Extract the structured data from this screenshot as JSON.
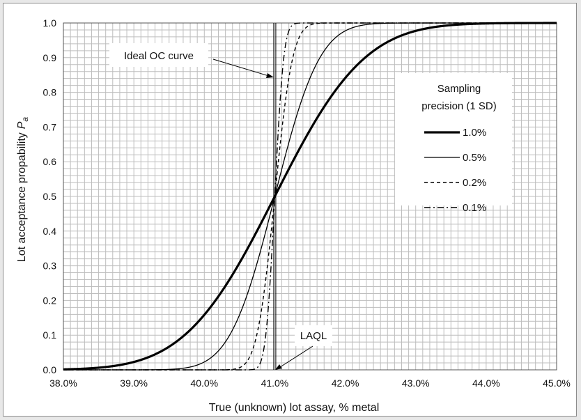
{
  "chart_data": {
    "type": "line",
    "xlabel": "True (unknown) lot assay, % metal",
    "ylabel": "Lot acceptance propability",
    "ylabel_symbol": "P",
    "ylabel_subscript": "a",
    "xlim": [
      38.0,
      45.0
    ],
    "ylim": [
      0.0,
      1.0
    ],
    "x_ticks": [
      38.0,
      39.0,
      40.0,
      41.0,
      42.0,
      43.0,
      44.0,
      45.0
    ],
    "x_tick_labels": [
      "38.0%",
      "39.0%",
      "40.0%",
      "41.0%",
      "42.0%",
      "43.0%",
      "44.0%",
      "45.0%"
    ],
    "y_ticks": [
      0.0,
      0.1,
      0.2,
      0.3,
      0.4,
      0.5,
      0.6,
      0.7,
      0.8,
      0.9,
      1.0
    ],
    "y_tick_labels": [
      "0.0",
      "0.1",
      "0.2",
      "0.3",
      "0.4",
      "0.5",
      "0.6",
      "0.7",
      "0.8",
      "0.9",
      "1.0"
    ],
    "grid": true,
    "legend": {
      "title_line1": "Sampling",
      "title_line2": "precision (1 SD)",
      "placement": "right"
    },
    "series": [
      {
        "name": "1.0%",
        "mean": 41.0,
        "sd": 1.0,
        "style": "thick-solid"
      },
      {
        "name": "0.5%",
        "mean": 41.0,
        "sd": 0.5,
        "style": "thin-solid"
      },
      {
        "name": "0.2%",
        "mean": 41.0,
        "sd": 0.2,
        "style": "dashed"
      },
      {
        "name": "0.1%",
        "mean": 41.0,
        "sd": 0.1,
        "style": "dash-dot"
      }
    ],
    "ideal_oc_x": 41.0,
    "annotations": {
      "ideal": "Ideal OC curve",
      "laql": "LAQL"
    },
    "colors": {
      "line": "#000000",
      "grid": "#bdbdbd",
      "frame": "#8c8c8c",
      "background": "#ffffff"
    }
  }
}
